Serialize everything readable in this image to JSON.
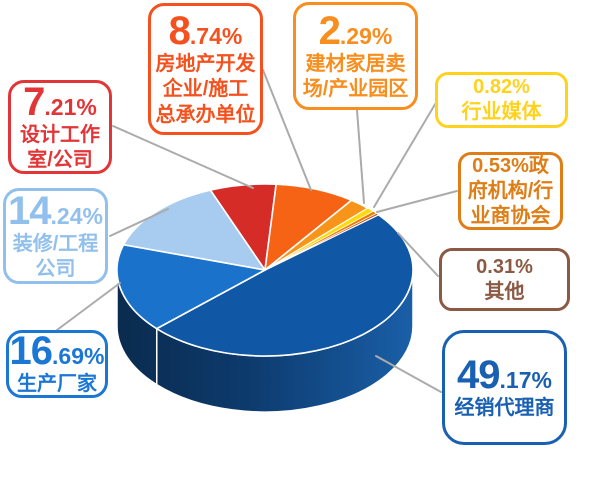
{
  "chart_data": {
    "type": "pie",
    "style": "3d",
    "unit": "percent",
    "start_angle_deg": 320,
    "clockwise": true,
    "slices": [
      {
        "label": "经销代理商",
        "value": 49.17,
        "color": "#1057A5"
      },
      {
        "label": "生产厂家",
        "value": 16.69,
        "color": "#1B72CB"
      },
      {
        "label": "装修/工程公司",
        "value": 14.24,
        "color": "#A8CCF0"
      },
      {
        "label": "设计工作室/公司",
        "value": 7.21,
        "color": "#D52C27"
      },
      {
        "label": "房地产开发企业/施工总承办单位",
        "value": 8.74,
        "color": "#F76315"
      },
      {
        "label": "建材家居卖场/产业园区",
        "value": 2.29,
        "color": "#F9941B"
      },
      {
        "label": "行业媒体",
        "value": 0.82,
        "color": "#FFD908"
      },
      {
        "label": "政府机构/行业商协会",
        "value": 0.53,
        "color": "#EE7D00"
      },
      {
        "label": "其他",
        "value": 0.31,
        "color": "#C84E12"
      }
    ],
    "side_gradient": [
      "#0A2B4E",
      "#0D3B6E",
      "#1A5FA8"
    ],
    "separator_color": "#FFFFFF",
    "connector_color": "#ABABAB"
  },
  "callouts": [
    {
      "id": "design-studio",
      "int": "7",
      "frac": ".21%",
      "lines": [
        "设计工作",
        "室/公司"
      ],
      "color": "#E23537"
    },
    {
      "id": "real-estate-developer",
      "int": "8",
      "frac": ".74%",
      "lines": [
        "房地产开发",
        "企业/施工",
        "总承办单位"
      ],
      "color": "#F4511E"
    },
    {
      "id": "building-material-market",
      "int": "2",
      "frac": ".29%",
      "lines": [
        "建材家居卖",
        "场/产业园区"
      ],
      "color": "#F78E1E"
    },
    {
      "id": "industry-media",
      "lines": [
        "0.82%",
        "行业媒体"
      ],
      "color": "#FFD21E"
    },
    {
      "id": "government-association",
      "lines": [
        "0.53%政",
        "府机构/行",
        "业商协会"
      ],
      "color": "#DF7D16"
    },
    {
      "id": "other",
      "lines": [
        "0.31%",
        "其他"
      ],
      "color": "#8A5A44"
    },
    {
      "id": "dealer-agent",
      "int": "49",
      "frac": ".17%",
      "lines": [
        "经销代理商"
      ],
      "color": "#1A60B2"
    },
    {
      "id": "manufacturer",
      "int": "16",
      "frac": ".69%",
      "lines": [
        "生产厂家"
      ],
      "color": "#1B77D4"
    },
    {
      "id": "decoration-engineering",
      "int": "14",
      "frac": ".24%",
      "lines": [
        "装修/工程",
        "公司"
      ],
      "color": "#92C0EC"
    }
  ]
}
